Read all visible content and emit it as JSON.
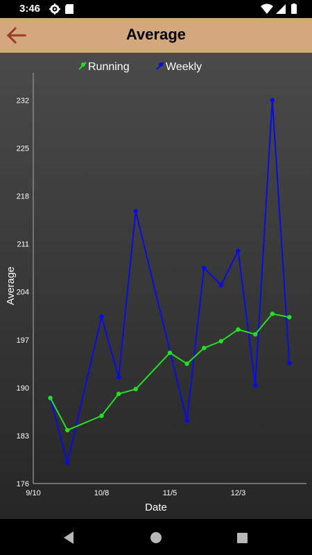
{
  "status_bar": {
    "time": "3:46",
    "icons_left": [
      "gear-icon",
      "sd-card-icon"
    ],
    "icons_right": [
      "wifi-icon",
      "signal-icon",
      "battery-icon"
    ]
  },
  "app_bar": {
    "title": "Average",
    "back_icon": "arrow-left-icon",
    "background": "#d2a87c",
    "back_color": "#a0392b"
  },
  "chart_data": {
    "type": "line",
    "xlabel": "Date",
    "ylabel": "Average",
    "x_tick_labels": [
      "9/10",
      "10/8",
      "11/5",
      "12/3"
    ],
    "y_tick_labels": [
      "176",
      "183",
      "190",
      "197",
      "204",
      "211",
      "218",
      "225",
      "232"
    ],
    "ylim": [
      176,
      236
    ],
    "legend_position": "top",
    "series": [
      {
        "name": "Running",
        "color": "#22e022",
        "values": [
          188.5,
          183.8,
          185.9,
          189.1,
          189.8,
          195.1,
          193.5,
          195.8,
          196.8,
          198.5,
          197.8,
          200.8,
          200.3
        ]
      },
      {
        "name": "Weekly",
        "color": "#0a0ae8",
        "values": [
          188.5,
          179.0,
          200.4,
          191.5,
          215.8,
          185.2,
          207.5,
          205.0,
          210.0,
          190.3,
          232.0,
          193.6
        ]
      }
    ],
    "x_positions_days": {
      "Running": [
        0,
        7,
        21,
        28,
        35,
        49,
        56,
        63,
        70,
        77,
        84,
        91,
        98
      ],
      "Weekly": [
        0,
        7,
        21,
        28,
        35,
        56,
        63,
        70,
        77,
        84,
        91,
        98
      ]
    },
    "x_ticks_days": [
      -7,
      21,
      49,
      77
    ]
  },
  "nav_bar": {
    "back": "back-triangle-icon",
    "home": "home-circle-icon",
    "recents": "recents-square-icon"
  }
}
